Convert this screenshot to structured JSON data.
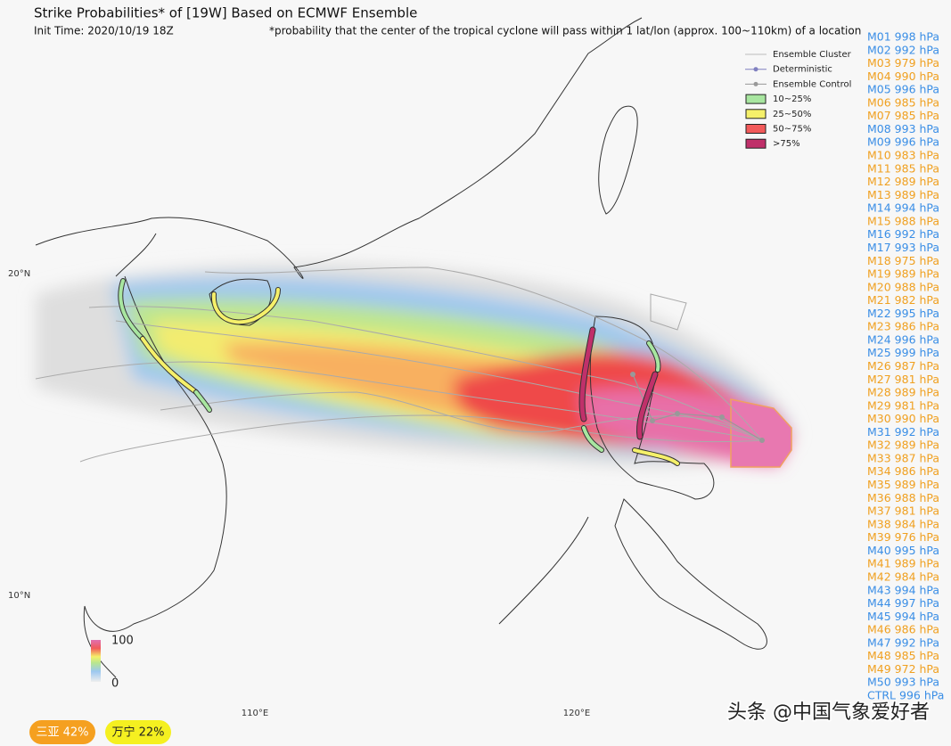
{
  "header": {
    "title": "Strike Probabilities* of [19W] Based on ECMWF Ensemble",
    "init_time": "Init Time: 2020/10/19 18Z",
    "footnote": "*probability that the center of the tropical cyclone will pass within 1 lat/lon (approx. 100~110km) of a location"
  },
  "legend": [
    {
      "label": "Ensemble Cluster",
      "kind": "line",
      "color": "#bbbbbb"
    },
    {
      "label": "Deterministic",
      "kind": "marker",
      "color": "#8080c0"
    },
    {
      "label": "Ensemble Control",
      "kind": "marker",
      "color": "#999999"
    },
    {
      "label": "10~25%",
      "kind": "box",
      "color": "#a8e6a0"
    },
    {
      "label": "25~50%",
      "kind": "box",
      "color": "#f5f06a"
    },
    {
      "label": "50~75%",
      "kind": "box",
      "color": "#f25a5a"
    },
    {
      "label": ">75%",
      "kind": "box",
      "color": "#c0306a"
    }
  ],
  "members": [
    {
      "label": "M01 998 hPa",
      "color": "#3a8ee6"
    },
    {
      "label": "M02 992 hPa",
      "color": "#3a8ee6"
    },
    {
      "label": "M03 979 hPa",
      "color": "#f0a020"
    },
    {
      "label": "M04 990 hPa",
      "color": "#f0a020"
    },
    {
      "label": "M05 996 hPa",
      "color": "#3a8ee6"
    },
    {
      "label": "M06 985 hPa",
      "color": "#f0a020"
    },
    {
      "label": "M07 985 hPa",
      "color": "#f0a020"
    },
    {
      "label": "M08 993 hPa",
      "color": "#3a8ee6"
    },
    {
      "label": "M09 996 hPa",
      "color": "#3a8ee6"
    },
    {
      "label": "M10 983 hPa",
      "color": "#f0a020"
    },
    {
      "label": "M11 985 hPa",
      "color": "#f0a020"
    },
    {
      "label": "M12 989 hPa",
      "color": "#f0a020"
    },
    {
      "label": "M13 989 hPa",
      "color": "#f0a020"
    },
    {
      "label": "M14 994 hPa",
      "color": "#3a8ee6"
    },
    {
      "label": "M15 988 hPa",
      "color": "#f0a020"
    },
    {
      "label": "M16 992 hPa",
      "color": "#3a8ee6"
    },
    {
      "label": "M17 993 hPa",
      "color": "#3a8ee6"
    },
    {
      "label": "M18 975 hPa",
      "color": "#f0a020"
    },
    {
      "label": "M19 989 hPa",
      "color": "#f0a020"
    },
    {
      "label": "M20 988 hPa",
      "color": "#f0a020"
    },
    {
      "label": "M21 982 hPa",
      "color": "#f0a020"
    },
    {
      "label": "M22 995 hPa",
      "color": "#3a8ee6"
    },
    {
      "label": "M23 986 hPa",
      "color": "#f0a020"
    },
    {
      "label": "M24 996 hPa",
      "color": "#3a8ee6"
    },
    {
      "label": "M25 999 hPa",
      "color": "#3a8ee6"
    },
    {
      "label": "M26 987 hPa",
      "color": "#f0a020"
    },
    {
      "label": "M27 981 hPa",
      "color": "#f0a020"
    },
    {
      "label": "M28 989 hPa",
      "color": "#f0a020"
    },
    {
      "label": "M29 981 hPa",
      "color": "#f0a020"
    },
    {
      "label": "M30 990 hPa",
      "color": "#f0a020"
    },
    {
      "label": "M31 992 hPa",
      "color": "#3a8ee6"
    },
    {
      "label": "M32 989 hPa",
      "color": "#f0a020"
    },
    {
      "label": "M33 987 hPa",
      "color": "#f0a020"
    },
    {
      "label": "M34 986 hPa",
      "color": "#f0a020"
    },
    {
      "label": "M35 989 hPa",
      "color": "#f0a020"
    },
    {
      "label": "M36 988 hPa",
      "color": "#f0a020"
    },
    {
      "label": "M37 981 hPa",
      "color": "#f0a020"
    },
    {
      "label": "M38 984 hPa",
      "color": "#f0a020"
    },
    {
      "label": "M39 976 hPa",
      "color": "#f0a020"
    },
    {
      "label": "M40 995 hPa",
      "color": "#3a8ee6"
    },
    {
      "label": "M41 989 hPa",
      "color": "#f0a020"
    },
    {
      "label": "M42 984 hPa",
      "color": "#f0a020"
    },
    {
      "label": "M43 994 hPa",
      "color": "#3a8ee6"
    },
    {
      "label": "M44 997 hPa",
      "color": "#3a8ee6"
    },
    {
      "label": "M45 994 hPa",
      "color": "#3a8ee6"
    },
    {
      "label": "M46 986 hPa",
      "color": "#f0a020"
    },
    {
      "label": "M47 992 hPa",
      "color": "#3a8ee6"
    },
    {
      "label": "M48 985 hPa",
      "color": "#f0a020"
    },
    {
      "label": "M49 972 hPa",
      "color": "#f0a020"
    },
    {
      "label": "M50 993 hPa",
      "color": "#3a8ee6"
    },
    {
      "label": "CTRL 996 hPa",
      "color": "#3a8ee6"
    }
  ],
  "map": {
    "lat_labels": [
      "20°N",
      "10°N"
    ],
    "lon_labels": [
      "110°E",
      "120°E"
    ],
    "colorbar": {
      "max": "100",
      "min": "0"
    }
  },
  "badges": [
    {
      "label": "三亚 42%",
      "color": "#f5a020"
    },
    {
      "label": "万宁 22%",
      "color": "#f5f020"
    }
  ],
  "watermark": "头条 @中国气象爱好者"
}
